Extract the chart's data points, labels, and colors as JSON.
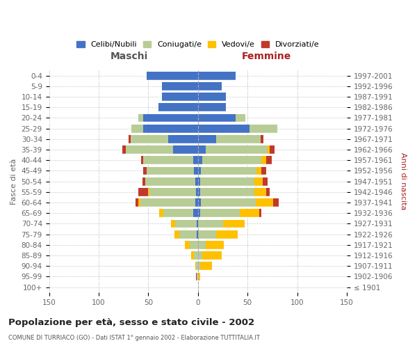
{
  "age_groups": [
    "100+",
    "95-99",
    "90-94",
    "85-89",
    "80-84",
    "75-79",
    "70-74",
    "65-69",
    "60-64",
    "55-59",
    "50-54",
    "45-49",
    "40-44",
    "35-39",
    "30-34",
    "25-29",
    "20-24",
    "15-19",
    "10-14",
    "5-9",
    "0-4"
  ],
  "birth_years": [
    "≤ 1901",
    "1902-1906",
    "1907-1911",
    "1912-1916",
    "1917-1921",
    "1922-1926",
    "1927-1931",
    "1932-1936",
    "1937-1941",
    "1942-1946",
    "1947-1951",
    "1952-1956",
    "1957-1961",
    "1962-1966",
    "1967-1971",
    "1972-1976",
    "1977-1981",
    "1982-1986",
    "1987-1991",
    "1992-1996",
    "1997-2001"
  ],
  "male_celibi": [
    0,
    0,
    0,
    0,
    0,
    1,
    1,
    5,
    3,
    2,
    3,
    4,
    5,
    25,
    30,
    55,
    55,
    40,
    36,
    36,
    52
  ],
  "male_coniugati": [
    0,
    1,
    2,
    4,
    8,
    18,
    22,
    30,
    55,
    47,
    50,
    48,
    50,
    48,
    38,
    12,
    5,
    0,
    0,
    0,
    0
  ],
  "male_vedovi": [
    0,
    0,
    1,
    3,
    5,
    5,
    4,
    4,
    2,
    1,
    0,
    0,
    0,
    0,
    0,
    0,
    0,
    0,
    0,
    0,
    0
  ],
  "male_divorziati": [
    0,
    1,
    0,
    0,
    0,
    0,
    0,
    0,
    3,
    10,
    3,
    3,
    2,
    3,
    2,
    0,
    0,
    0,
    0,
    0,
    0
  ],
  "female_nubili": [
    0,
    0,
    0,
    0,
    0,
    0,
    0,
    2,
    3,
    2,
    2,
    3,
    4,
    8,
    18,
    52,
    38,
    28,
    28,
    24,
    38
  ],
  "female_coniugate": [
    0,
    0,
    2,
    4,
    8,
    18,
    25,
    40,
    55,
    55,
    55,
    56,
    60,
    62,
    45,
    28,
    10,
    0,
    0,
    0,
    0
  ],
  "female_vedove": [
    0,
    2,
    12,
    20,
    18,
    22,
    22,
    20,
    18,
    12,
    8,
    5,
    5,
    2,
    0,
    0,
    0,
    0,
    0,
    0,
    0
  ],
  "female_divorziate": [
    0,
    0,
    0,
    0,
    0,
    0,
    0,
    2,
    5,
    3,
    5,
    5,
    5,
    5,
    3,
    0,
    0,
    0,
    0,
    0,
    0
  ],
  "colors": {
    "celibi": "#4472c4",
    "coniugati": "#b8cc96",
    "vedovi": "#ffc000",
    "divorziati": "#c0392b"
  },
  "title": "Popolazione per età, sesso e stato civile - 2002",
  "subtitle": "COMUNE DI TURRIACO (GO) - Dati ISTAT 1° gennaio 2002 - Elaborazione TUTTITALIA.IT",
  "xlabel_left": "Maschi",
  "xlabel_right": "Femmine",
  "ylabel_left": "Fasce di età",
  "ylabel_right": "Anni di nascita",
  "xlim": 150,
  "background_color": "#ffffff",
  "legend_labels": [
    "Celibi/Nubili",
    "Coniugati/e",
    "Vedovi/e",
    "Divorziati/e"
  ]
}
